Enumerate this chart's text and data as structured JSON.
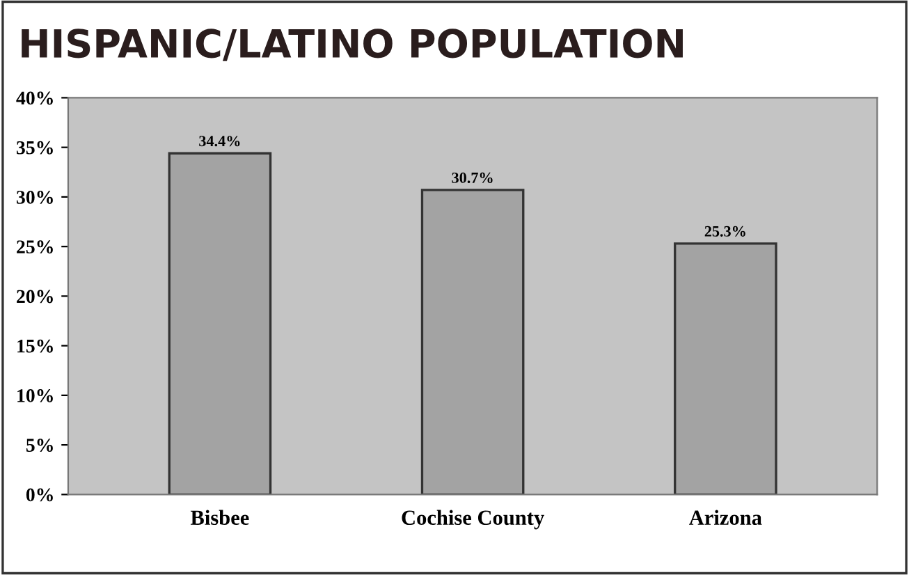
{
  "chart_data": {
    "type": "bar",
    "title": "HISPANIC/LATINO POPULATION",
    "categories": [
      "Bisbee",
      "Cochise County",
      "Arizona"
    ],
    "values": [
      34.4,
      30.7,
      25.3
    ],
    "value_labels": [
      "34.4%",
      "30.7%",
      "25.3%"
    ],
    "color": "#a3a3a3",
    "ylim": [
      0,
      40
    ],
    "yticks": [
      {
        "value": 0,
        "label": "0%"
      },
      {
        "value": 5,
        "label": "5%"
      },
      {
        "value": 10,
        "label": "10%"
      },
      {
        "value": 15,
        "label": "15%"
      },
      {
        "value": 20,
        "label": "20%"
      },
      {
        "value": 25,
        "label": "25%"
      },
      {
        "value": 30,
        "label": "30%"
      },
      {
        "value": 35,
        "label": "35%"
      },
      {
        "value": 40,
        "label": "40%"
      }
    ],
    "grid": false
  }
}
